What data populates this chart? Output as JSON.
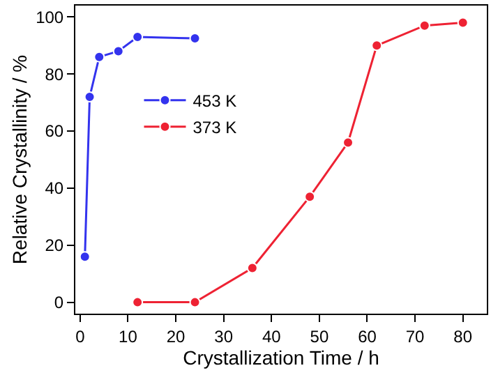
{
  "chart_data": {
    "type": "line",
    "xlabel": "Crystallization Time / h",
    "ylabel": "Relative Crystallinity / %",
    "xlim": [
      -1,
      85
    ],
    "xticks": [
      0,
      10,
      20,
      30,
      40,
      50,
      60,
      70,
      80
    ],
    "ylim": [
      -4,
      104
    ],
    "yticks": [
      0,
      20,
      40,
      60,
      80,
      100
    ],
    "series": [
      {
        "name": "453 K",
        "color": "#3333ee",
        "x": [
          1,
          2,
          4,
          8,
          12,
          24
        ],
        "values": [
          16,
          72,
          86,
          88,
          93,
          92.5
        ]
      },
      {
        "name": "373 K",
        "color": "#ee2233",
        "x": [
          12,
          24,
          36,
          48,
          56,
          62,
          72,
          80
        ],
        "values": [
          0,
          0,
          12,
          37,
          56,
          90,
          97,
          98
        ]
      }
    ],
    "marker": "circle",
    "line_style": "solid",
    "legend": "left"
  }
}
